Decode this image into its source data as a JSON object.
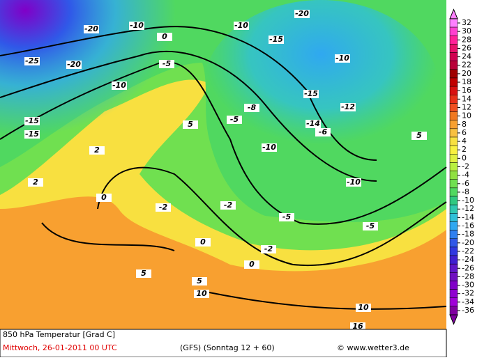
{
  "map": {
    "labels": [
      "-25",
      "-20",
      "-20",
      "-15",
      "-15",
      "-10",
      "-10",
      "-10",
      "-15",
      "-10",
      "-5",
      "-5",
      "-5",
      "0",
      "0",
      "0",
      "0",
      "5",
      "5",
      "5",
      "5",
      "10",
      "10",
      "-10",
      "-5",
      "-10",
      "-15",
      "-20",
      "-12",
      "-14",
      "-8",
      "-6",
      "-2",
      "-2",
      "-2",
      "2",
      "2",
      "16"
    ]
  },
  "colorbar": {
    "ticks": [
      32,
      30,
      28,
      26,
      24,
      22,
      20,
      18,
      16,
      14,
      12,
      10,
      8,
      6,
      4,
      2,
      0,
      -2,
      -4,
      -6,
      -8,
      -10,
      -12,
      -14,
      -16,
      -18,
      -20,
      -22,
      -24,
      -26,
      -28,
      -30,
      -32,
      -34,
      -36
    ],
    "colors": [
      "#ff80ff",
      "#ff40d0",
      "#ff2098",
      "#e8106a",
      "#d00050",
      "#b80038",
      "#a00000",
      "#c00000",
      "#d81010",
      "#e83018",
      "#f05020",
      "#f07820",
      "#f8a030",
      "#f8c040",
      "#f8e040",
      "#f8f040",
      "#e0f040",
      "#b8f040",
      "#90e040",
      "#70e050",
      "#50d860",
      "#30c880",
      "#30c8b0",
      "#30c0d8",
      "#30a8f0",
      "#3080f0",
      "#3058e8",
      "#3038e0",
      "#4020d0",
      "#6018c8",
      "#7010c0",
      "#8000c8",
      "#9000d0",
      "#a000d8",
      "#8000a0"
    ]
  },
  "footer": {
    "title": "850 hPa Temperatur [Grad C]",
    "date": "Mittwoch, 26-01-2011  00 UTC",
    "model": "(GFS)  (Sonntag 12 + 60)",
    "credit": "© www.wetter3.de"
  }
}
